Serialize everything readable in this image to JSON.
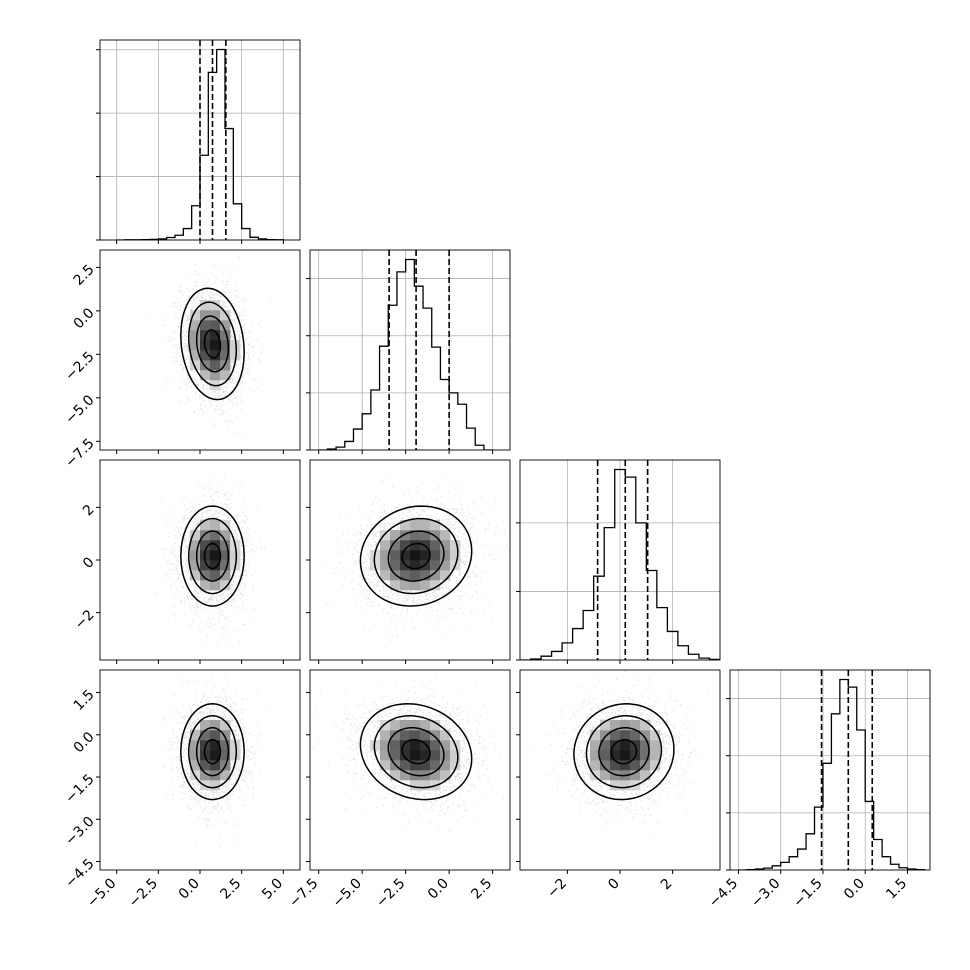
{
  "chart_data": {
    "type": "corner",
    "parameters": 4,
    "colors": {
      "line": "#000000",
      "grid": "#b0b0b0",
      "points": "#000000"
    },
    "grid": true,
    "x_ticks": [
      {
        "values": [
          -5,
          -2.5,
          0,
          2.5,
          5
        ],
        "labels": [
          "−5.0",
          "−2.5",
          "0.0",
          "2.5",
          "5.0"
        ]
      },
      {
        "values": [
          -7.5,
          -5,
          -2.5,
          0,
          2.5
        ],
        "labels": [
          "−7.5",
          "−5.0",
          "−2.5",
          "0.0",
          "2.5"
        ]
      },
      {
        "values": [
          -2,
          0,
          2
        ],
        "labels": [
          "−2",
          "0",
          "2"
        ]
      },
      {
        "values": [
          -4.5,
          -3,
          -1.5,
          0,
          1.5
        ],
        "labels": [
          "−4.5",
          "−3.0",
          "−1.5",
          "0.0",
          "1.5"
        ]
      }
    ],
    "y_ticks": [
      null,
      {
        "values": [
          2.5,
          0,
          -2.5,
          -5,
          -7.5
        ],
        "labels": [
          "2.5",
          "0.0",
          "−2.5",
          "−5.0",
          "−7.5"
        ]
      },
      {
        "values": [
          2,
          0,
          -2
        ],
        "labels": [
          "2",
          "0",
          "−2"
        ]
      },
      {
        "values": [
          1.5,
          0,
          -1.5,
          -3,
          -4.5
        ],
        "labels": [
          "1.5",
          "0.0",
          "−1.5",
          "−3.0",
          "−4.5"
        ]
      }
    ],
    "ranges": [
      [
        -6.0,
        6.0
      ],
      [
        -8.0,
        3.5
      ],
      [
        -3.8,
        3.8
      ],
      [
        -4.8,
        2.3
      ]
    ],
    "diagonal": [
      {
        "param": 0,
        "bin_edges": [
          -5,
          -4.5,
          -4,
          -3.5,
          -3,
          -2.5,
          -2,
          -1.5,
          -1,
          -0.5,
          0,
          0.5,
          1,
          1.5,
          2,
          2.5,
          3,
          3.5,
          4,
          4.5,
          5
        ],
        "counts": [
          0,
          1,
          1,
          2,
          3,
          6,
          13,
          25,
          60,
          180,
          445,
          880,
          1000,
          585,
          190,
          60,
          14,
          6,
          2,
          1
        ],
        "quantiles": [
          0.0,
          0.75,
          1.55
        ],
        "y_ticks": [
          0,
          333,
          666,
          999
        ]
      },
      {
        "param": 1,
        "bin_edges": [
          -7.5,
          -7,
          -6.5,
          -6,
          -5.5,
          -5,
          -4.5,
          -4,
          -3.5,
          -3,
          -2.5,
          -2,
          -1.5,
          -1,
          -0.5,
          0,
          0.5,
          1,
          1.5,
          2,
          2.5
        ],
        "counts": [
          0,
          5,
          15,
          45,
          110,
          190,
          315,
          545,
          760,
          935,
          1000,
          860,
          745,
          540,
          370,
          300,
          240,
          115,
          25,
          0
        ],
        "quantiles": [
          -3.45,
          -1.9,
          0.0
        ],
        "y_ticks": [
          0,
          300,
          600,
          900
        ]
      },
      {
        "param": 2,
        "bin_edges": [
          -3.8,
          -3.4,
          -3.0,
          -2.6,
          -2.2,
          -1.8,
          -1.4,
          -1.0,
          -0.6,
          -0.2,
          0.2,
          0.6,
          1.0,
          1.4,
          1.8,
          2.2,
          2.6,
          3.0,
          3.4,
          3.8
        ],
        "counts": [
          0,
          5,
          20,
          45,
          90,
          165,
          260,
          440,
          695,
          1000,
          960,
          720,
          470,
          275,
          150,
          75,
          30,
          10,
          3
        ],
        "quantiles": [
          -0.85,
          0.2,
          1.05
        ],
        "y_ticks": [
          0,
          360,
          720
        ]
      },
      {
        "param": 3,
        "bin_edges": [
          -4.5,
          -4.2,
          -3.9,
          -3.6,
          -3.3,
          -3.0,
          -2.7,
          -2.4,
          -2.1,
          -1.8,
          -1.5,
          -1.2,
          -0.9,
          -0.6,
          -0.3,
          0.0,
          0.3,
          0.6,
          0.9,
          1.2,
          1.5,
          1.8,
          2.1
        ],
        "counts": [
          0,
          2,
          5,
          10,
          22,
          40,
          70,
          110,
          190,
          330,
          560,
          820,
          1000,
          960,
          735,
          360,
          160,
          70,
          30,
          12,
          5,
          2
        ],
        "quantiles": [
          -1.55,
          -0.6,
          0.25
        ],
        "y_ticks": [
          0,
          300,
          600,
          900
        ]
      }
    ],
    "pairs": [
      {
        "x_param": 0,
        "y_param": 1,
        "mean": [
          0.75,
          -1.9
        ],
        "std": [
          0.95,
          1.6
        ],
        "corr": -0.15
      },
      {
        "x_param": 0,
        "y_param": 2,
        "mean": [
          0.75,
          0.15
        ],
        "std": [
          0.95,
          0.95
        ],
        "corr": 0.0
      },
      {
        "x_param": 1,
        "y_param": 2,
        "mean": [
          -1.9,
          0.15
        ],
        "std": [
          1.6,
          0.95
        ],
        "corr": 0.1
      },
      {
        "x_param": 0,
        "y_param": 3,
        "mean": [
          0.75,
          -0.6
        ],
        "std": [
          0.95,
          0.85
        ],
        "corr": 0.0
      },
      {
        "x_param": 1,
        "y_param": 3,
        "mean": [
          -1.9,
          -0.6
        ],
        "std": [
          1.6,
          0.85
        ],
        "corr": -0.15
      },
      {
        "x_param": 2,
        "y_param": 3,
        "mean": [
          0.15,
          -0.6
        ],
        "std": [
          0.95,
          0.85
        ],
        "corr": 0.05
      }
    ],
    "contour_levels_sigma": [
      0.5,
      1.0,
      1.5,
      2.0
    ]
  }
}
